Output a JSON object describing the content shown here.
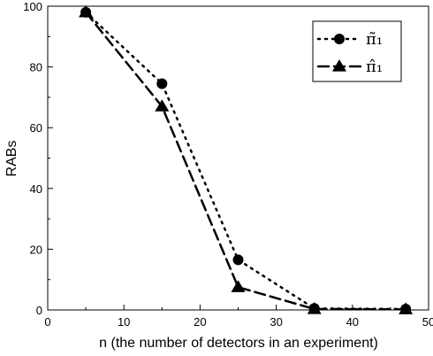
{
  "chart_data": {
    "type": "line",
    "xlabel": "n (the number of detectors in an experiment)",
    "ylabel": "RABs",
    "xlim": [
      0,
      50
    ],
    "ylim": [
      0,
      100
    ],
    "x_ticks": [
      "0",
      "10",
      "20",
      "30",
      "40",
      "50"
    ],
    "y_ticks": [
      "0",
      "20",
      "40",
      "60",
      "80",
      "100"
    ],
    "grid": false,
    "legend_position": "top-right",
    "series": [
      {
        "name": "π̃₁",
        "marker": "circle",
        "line_style": "dotted",
        "color": "#000000",
        "x": [
          5,
          15,
          25,
          35,
          47
        ],
        "y": [
          98,
          74.5,
          16.5,
          0.5,
          0.3
        ]
      },
      {
        "name": "π̂₁",
        "marker": "triangle",
        "line_style": "dashed",
        "color": "#000000",
        "x": [
          5,
          15,
          25,
          35,
          47
        ],
        "y": [
          98,
          67,
          7.5,
          0.3,
          0.2
        ]
      }
    ]
  }
}
